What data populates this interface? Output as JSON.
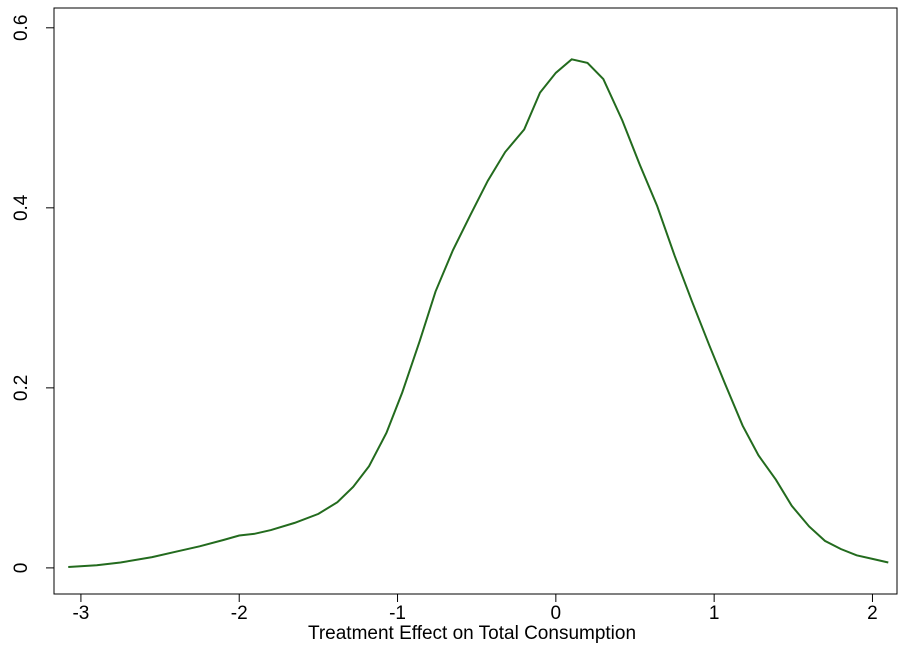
{
  "chart_data": {
    "type": "line",
    "xlabel": "Treatment Effect on Total Consumption",
    "x": [
      -3.08,
      -2.9,
      -2.75,
      -2.55,
      -2.4,
      -2.25,
      -2.1,
      -2.0,
      -1.9,
      -1.8,
      -1.65,
      -1.5,
      -1.38,
      -1.28,
      -1.18,
      -1.07,
      -0.97,
      -0.86,
      -0.76,
      -0.65,
      -0.54,
      -0.43,
      -0.32,
      -0.2,
      -0.1,
      0.0,
      0.1,
      0.2,
      0.3,
      0.42,
      0.53,
      0.64,
      0.75,
      0.86,
      0.97,
      1.07,
      1.18,
      1.28,
      1.39,
      1.49,
      1.6,
      1.7,
      1.8,
      1.9,
      2.0,
      2.1
    ],
    "series": [
      {
        "color": "#236b1e",
        "values": [
          0.001,
          0.003,
          0.006,
          0.012,
          0.018,
          0.024,
          0.031,
          0.036,
          0.038,
          0.042,
          0.05,
          0.06,
          0.073,
          0.09,
          0.113,
          0.15,
          0.195,
          0.252,
          0.307,
          0.353,
          0.392,
          0.43,
          0.462,
          0.487,
          0.528,
          0.55,
          0.565,
          0.561,
          0.543,
          0.497,
          0.448,
          0.402,
          0.347,
          0.296,
          0.247,
          0.204,
          0.158,
          0.125,
          0.098,
          0.069,
          0.046,
          0.03,
          0.021,
          0.014,
          0.01,
          0.006
        ]
      }
    ],
    "xlim": [
      -3.17,
      2.155
    ],
    "ylim": [
      -0.029,
      0.622
    ],
    "xticks": [
      -3,
      -2,
      -1,
      0,
      1,
      2
    ],
    "yticks": [
      0,
      0.2,
      0.4,
      0.6
    ]
  }
}
